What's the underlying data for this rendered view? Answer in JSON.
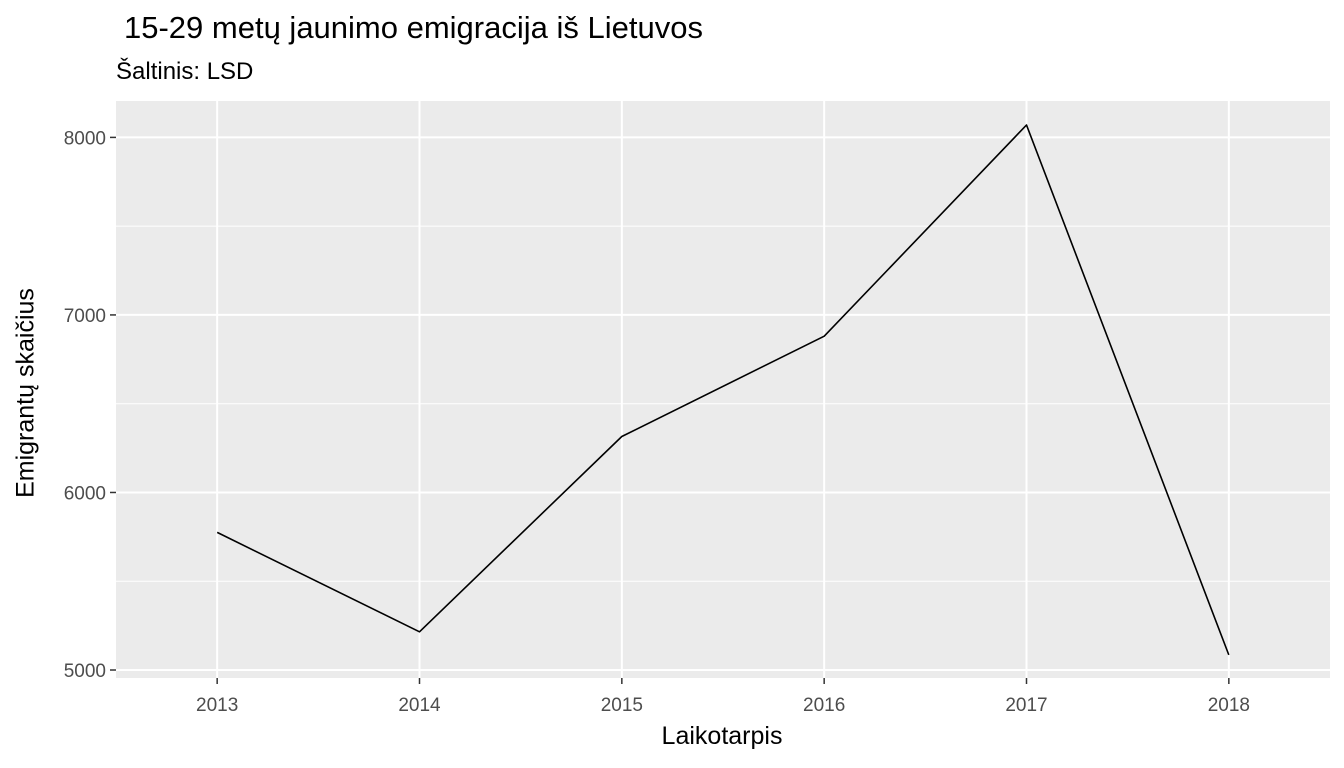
{
  "chart_data": {
    "type": "line",
    "title": "15-29 metų jaunimo emigracija iš Lietuvos",
    "subtitle": "Šaltinis: LSD",
    "xlabel": "Laikotarpis",
    "ylabel": "Emigrantų skaičius",
    "x": [
      2013,
      2014,
      2015,
      2016,
      2017,
      2018
    ],
    "y": [
      5775,
      5215,
      6315,
      6880,
      8070,
      5085
    ],
    "xlim": [
      2012.5,
      2018.5
    ],
    "ylim": [
      4955,
      8205
    ],
    "x_ticks": [
      "2013",
      "2014",
      "2015",
      "2016",
      "2017",
      "2018"
    ],
    "y_ticks": [
      5000,
      6000,
      7000,
      8000
    ],
    "grid": true,
    "line_color": "#000000",
    "panel_background": "#ebebeb",
    "grid_color": "#ffffff"
  }
}
